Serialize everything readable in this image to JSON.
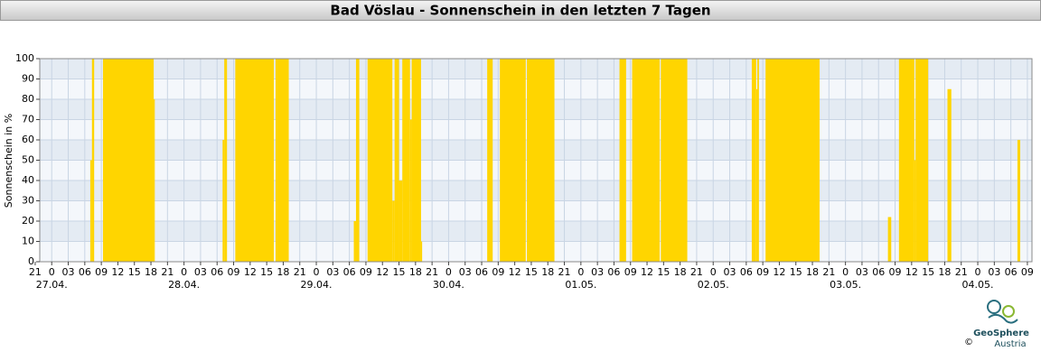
{
  "chart_data": {
    "type": "histogram",
    "title": "Bad Vöslau - Sonnenschein in den letzten 7 Tagen",
    "y_label": "Sonnenschein in %",
    "color": "#ffd500",
    "bins": [
      7.0,
      7.3,
      7.7,
      9.3,
      18.5,
      18.7,
      31.0,
      31.3,
      31.8,
      33.3,
      40.3,
      40.6,
      43.0,
      54.8,
      55.2,
      55.8,
      57.3,
      61.8,
      62.2,
      63.0,
      63.6,
      65.0,
      65.3,
      67.0,
      67.2,
      79.0,
      80.0,
      81.3,
      86.0,
      86.2,
      91.2,
      103.0,
      104.2,
      105.3,
      110.3,
      110.5,
      115.3,
      127.0,
      127.8,
      128.0,
      128.3,
      129.5,
      139.3,
      151.7,
      152.3,
      153.7,
      156.5,
      156.7,
      159.0,
      162.5,
      163.2,
      175.2,
      175.7
    ],
    "values": [
      50,
      100,
      0,
      100,
      80,
      0,
      60,
      100,
      0,
      100,
      0,
      100,
      0,
      20,
      100,
      0,
      100,
      30,
      100,
      40,
      100,
      70,
      100,
      10,
      0,
      100,
      0,
      100,
      0,
      100,
      0,
      100,
      0,
      100,
      0,
      100,
      0,
      100,
      85,
      100,
      0,
      100,
      0,
      22,
      0,
      100,
      50,
      100,
      0,
      85,
      0,
      60
    ],
    "xlim": [
      -2.17,
      177.83
    ],
    "ylim": [
      0,
      100
    ],
    "yticks": [
      0,
      10,
      20,
      30,
      40,
      50,
      60,
      70,
      80,
      90,
      100
    ],
    "xticks": [
      {
        "value": -3,
        "label": "21"
      },
      {
        "value": 0,
        "label": "0"
      },
      {
        "value": 3,
        "label": "03"
      },
      {
        "value": 6,
        "label": "06"
      },
      {
        "value": 9,
        "label": "09"
      },
      {
        "value": 12,
        "label": "12"
      },
      {
        "value": 15,
        "label": "15"
      },
      {
        "value": 18,
        "label": "18"
      },
      {
        "value": 21,
        "label": "21"
      },
      {
        "value": 24,
        "label": "0"
      },
      {
        "value": 27,
        "label": "03"
      },
      {
        "value": 30,
        "label": "06"
      },
      {
        "value": 33,
        "label": "09"
      },
      {
        "value": 36,
        "label": "12"
      },
      {
        "value": 39,
        "label": "15"
      },
      {
        "value": 42,
        "label": "18"
      },
      {
        "value": 45,
        "label": "21"
      },
      {
        "value": 48,
        "label": "0"
      },
      {
        "value": 51,
        "label": "03"
      },
      {
        "value": 54,
        "label": "06"
      },
      {
        "value": 57,
        "label": "09"
      },
      {
        "value": 60,
        "label": "12"
      },
      {
        "value": 63,
        "label": "15"
      },
      {
        "value": 66,
        "label": "18"
      },
      {
        "value": 69,
        "label": "21"
      },
      {
        "value": 72,
        "label": "0"
      },
      {
        "value": 75,
        "label": "03"
      },
      {
        "value": 78,
        "label": "06"
      },
      {
        "value": 81,
        "label": "09"
      },
      {
        "value": 84,
        "label": "12"
      },
      {
        "value": 87,
        "label": "15"
      },
      {
        "value": 90,
        "label": "18"
      },
      {
        "value": 93,
        "label": "21"
      },
      {
        "value": 96,
        "label": "0"
      },
      {
        "value": 99,
        "label": "03"
      },
      {
        "value": 102,
        "label": "06"
      },
      {
        "value": 105,
        "label": "09"
      },
      {
        "value": 108,
        "label": "12"
      },
      {
        "value": 111,
        "label": "15"
      },
      {
        "value": 114,
        "label": "18"
      },
      {
        "value": 117,
        "label": "21"
      },
      {
        "value": 120,
        "label": "0"
      },
      {
        "value": 123,
        "label": "03"
      },
      {
        "value": 126,
        "label": "06"
      },
      {
        "value": 129,
        "label": "09"
      },
      {
        "value": 132,
        "label": "12"
      },
      {
        "value": 135,
        "label": "15"
      },
      {
        "value": 138,
        "label": "18"
      },
      {
        "value": 141,
        "label": "21"
      },
      {
        "value": 144,
        "label": "0"
      },
      {
        "value": 147,
        "label": "03"
      },
      {
        "value": 150,
        "label": "06"
      },
      {
        "value": 153,
        "label": "09"
      },
      {
        "value": 156,
        "label": "12"
      },
      {
        "value": 159,
        "label": "15"
      },
      {
        "value": 162,
        "label": "18"
      },
      {
        "value": 165,
        "label": "21"
      },
      {
        "value": 168,
        "label": "0"
      },
      {
        "value": 171,
        "label": "03"
      },
      {
        "value": 174,
        "label": "06"
      },
      {
        "value": 177,
        "label": "09"
      }
    ],
    "date_ticks": [
      {
        "value": 0,
        "label": "27.04."
      },
      {
        "value": 24,
        "label": "28.04."
      },
      {
        "value": 48,
        "label": "29.04."
      },
      {
        "value": 72,
        "label": "30.04."
      },
      {
        "value": 96,
        "label": "01.05."
      },
      {
        "value": 120,
        "label": "02.05."
      },
      {
        "value": 144,
        "label": "03.05."
      },
      {
        "value": 168,
        "label": "04.05."
      }
    ],
    "grid": true,
    "logo": {
      "name": "GeoSphere",
      "sub": "Austria",
      "copyright": "©"
    }
  }
}
